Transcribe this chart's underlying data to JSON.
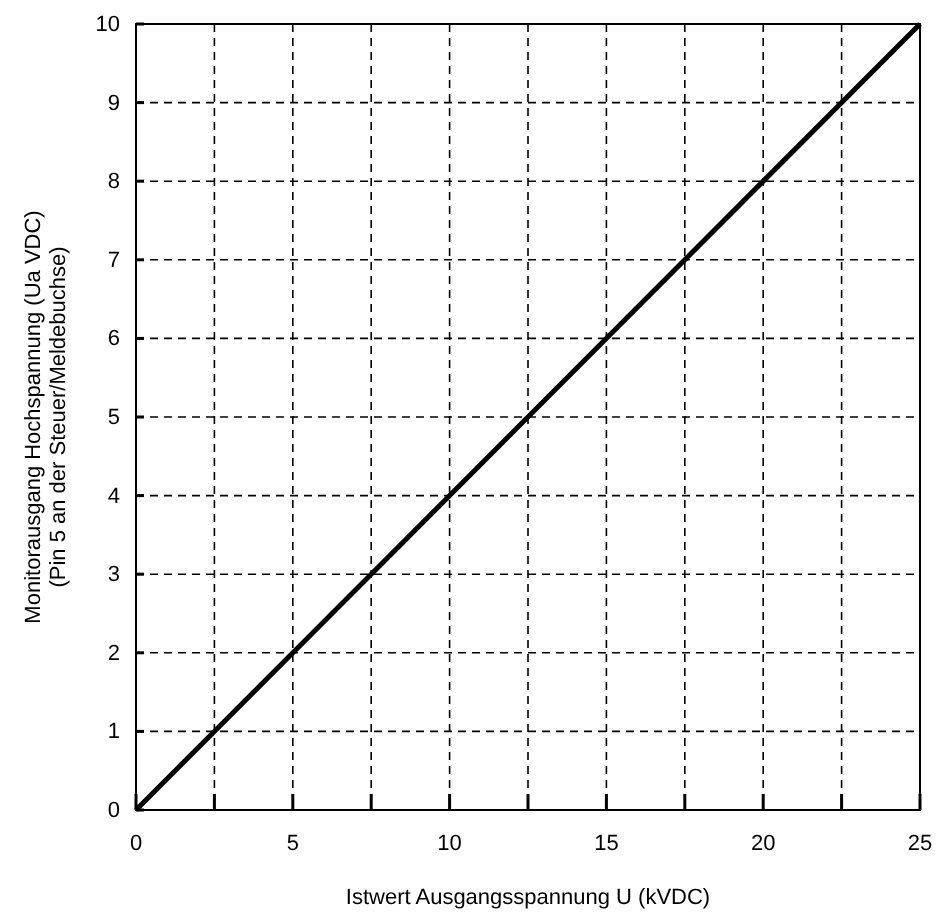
{
  "chart_data": {
    "type": "line",
    "xlabel": "Istwert Ausgangsspannung U (kVDC)",
    "ylabel": "Monitorausgang Hochspannung (Ua VDC)\n(Pin 5 an der Steuer/Meldebuchse)",
    "x": [
      0,
      25
    ],
    "series": [
      {
        "color": "#000000",
        "values": [
          0,
          10
        ]
      }
    ],
    "xlim": [
      0,
      25
    ],
    "ylim": [
      0,
      10
    ],
    "xticks": [
      0,
      {
        "value": 2.5,
        "label": null
      },
      5,
      {
        "value": 7.5,
        "label": null
      },
      10,
      {
        "value": 12.5,
        "label": null
      },
      15,
      {
        "value": 17.5,
        "label": null
      },
      20,
      {
        "value": 22.5,
        "label": null
      },
      25
    ],
    "yticks": [
      0,
      1,
      2,
      3,
      4,
      5,
      6,
      7,
      8,
      9,
      10
    ],
    "grid": true,
    "marker": "none",
    "line_style": "solid"
  }
}
